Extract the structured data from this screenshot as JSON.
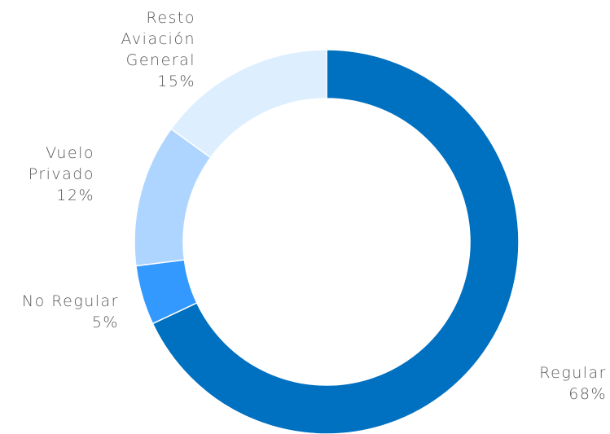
{
  "chart_data": {
    "type": "donut",
    "categories": [
      "Regular",
      "No Regular",
      "Vuelo Privado",
      "Resto Aviación General"
    ],
    "values": [
      68,
      5,
      12,
      15
    ],
    "value_labels": [
      "68%",
      "5%",
      "12%",
      "15%"
    ],
    "colors": [
      "#0070c0",
      "#3399ff",
      "#add5ff",
      "#ddeeff"
    ]
  }
}
